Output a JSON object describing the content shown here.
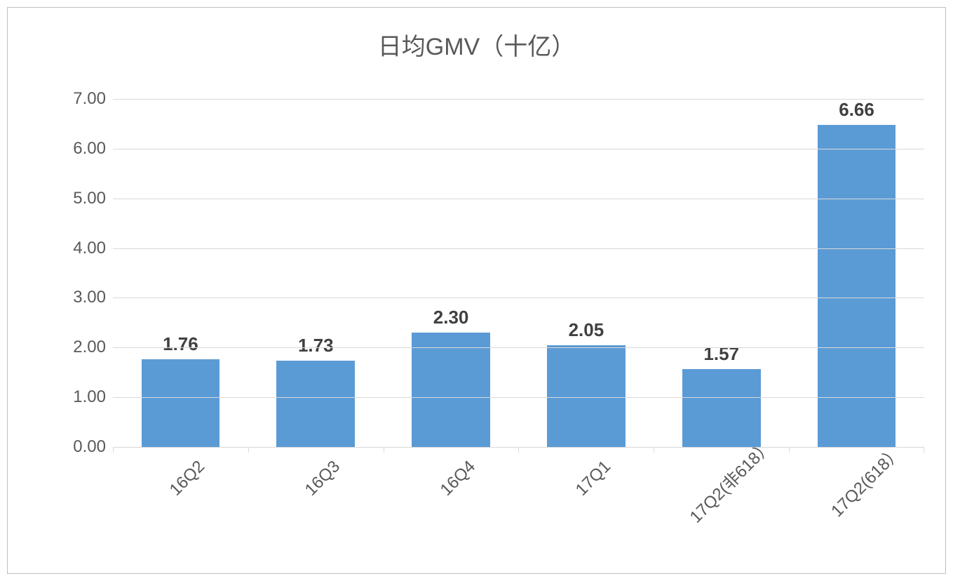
{
  "chart": {
    "type": "bar",
    "title": "日均GMV（十亿）",
    "title_fontsize": 34,
    "title_color": "#595959",
    "categories": [
      "16Q2",
      "16Q3",
      "16Q4",
      "17Q1",
      "17Q2(非618）",
      "17Q2(618）"
    ],
    "values": [
      1.76,
      1.73,
      2.3,
      2.05,
      1.57,
      6.66
    ],
    "value_labels": [
      "1.76",
      "1.73",
      "2.30",
      "2.05",
      "1.57",
      "6.66"
    ],
    "bar_color": "#5b9bd5",
    "background_color": "#ffffff",
    "border_color": "#bfbfbf",
    "grid_color": "#d9d9d9",
    "axis_label_color": "#595959",
    "value_label_color": "#404040",
    "value_label_fontsize": 26,
    "axis_label_fontsize": 24,
    "ylim": [
      0,
      7
    ],
    "ytick_step": 1,
    "ytick_labels": [
      "0.00",
      "1.00",
      "2.00",
      "3.00",
      "4.00",
      "5.00",
      "6.00",
      "7.00"
    ],
    "bar_width_ratio": 0.58,
    "x_label_rotation": -45
  }
}
